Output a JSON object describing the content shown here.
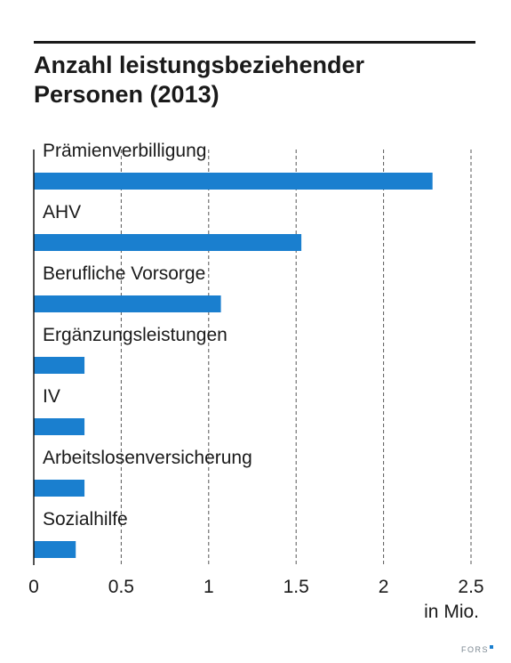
{
  "title": "Anzahl leistungsbeziehender Personen (2013)",
  "unit_label": "in Mio.",
  "brand": "FORS",
  "colors": {
    "bar": "#1a7fcf",
    "text": "#1a1a1a",
    "grid": "#555555",
    "brand": "#7a8690"
  },
  "chart_data": {
    "type": "bar",
    "orientation": "horizontal",
    "title": "Anzahl leistungsbeziehender Personen (2013)",
    "categories": [
      "Prämienverbilligung",
      "AHV",
      "Berufliche Vorsorge",
      "Ergänzungsleistungen",
      "IV",
      "Arbeitslosenversicherung",
      "Sozialhilfe"
    ],
    "values": [
      2.28,
      1.53,
      1.07,
      0.29,
      0.29,
      0.29,
      0.24
    ],
    "xlabel": "in Mio.",
    "xlim": [
      0,
      2.5
    ],
    "xticks": [
      0,
      0.5,
      1,
      1.5,
      2,
      2.5
    ],
    "xtick_labels": [
      "0",
      "0.5",
      "1",
      "1.5",
      "2",
      "2.5"
    ],
    "grid": "vertical dashed",
    "legend": "none"
  }
}
